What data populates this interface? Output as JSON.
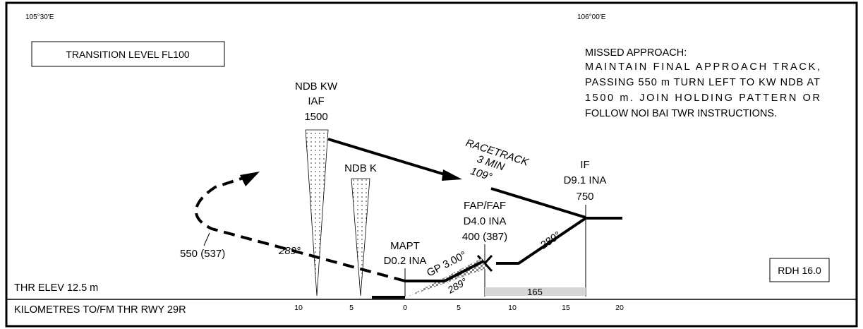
{
  "coords": {
    "left": "105°30'E",
    "right": "106°00'E"
  },
  "transition_level": "TRANSITION LEVEL FL100",
  "missed_approach": {
    "line1": "MISSED APPROACH:",
    "line2": "MAINTAIN FINAL APPROACH TRACK,",
    "line3": "PASSING 550 m TURN LEFT TO KW NDB AT",
    "line4": "1500 m. JOIN HOLDING PATTERN OR",
    "line5": "FOLLOW NOI BAI TWR INSTRUCTIONS."
  },
  "ndb_kw": {
    "line1": "NDB KW",
    "line2": "IAF",
    "line3": "1500"
  },
  "ndb_k": {
    "label": "NDB K"
  },
  "racetrack": {
    "line1": "RACETRACK",
    "line2": "3 MIN",
    "line3": "109°"
  },
  "if_fix": {
    "line1": "IF",
    "line2": "D9.1 INA",
    "line3": "750"
  },
  "fap": {
    "line1": "FAP/FAF",
    "line2": "D4.0 INA",
    "line3": "400 (387)"
  },
  "mapt": {
    "line1": "MAPT",
    "line2": "D0.2 INA"
  },
  "gp": "GP 3.00°",
  "track_289": "289°",
  "missed_alt": "550 (537)",
  "distance_165": "165",
  "rdh": "RDH 16.0",
  "thr_elev": "THR ELEV 12.5 m",
  "scale_label": "KILOMETRES TO/FM THR RWY 29R",
  "scale_ticks": [
    "10",
    "5",
    "0",
    "5",
    "10",
    "15",
    "20"
  ],
  "colors": {
    "ink": "#000000",
    "dotted_fill": "#ffffff",
    "shade": "#d6d6d6"
  }
}
